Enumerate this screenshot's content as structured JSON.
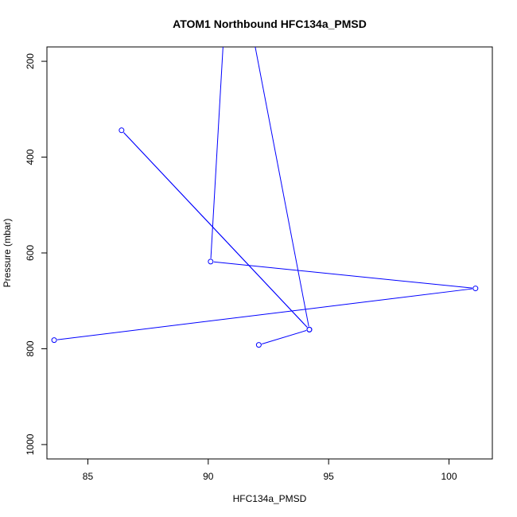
{
  "chart_data": {
    "type": "line",
    "title": "ATOM1 Northbound HFC134a_PMSD",
    "xlabel": "HFC134a_PMSD",
    "ylabel": "Pressure (mbar)",
    "xlim": [
      83.3,
      101.8
    ],
    "ylim": [
      1030,
      170
    ],
    "y_reversed": true,
    "x_ticks": [
      85,
      90,
      95,
      100
    ],
    "y_ticks": [
      200,
      400,
      600,
      800,
      1000
    ],
    "grid": false,
    "series": [
      {
        "color": "#0000ff",
        "marker": "open-circle",
        "x": [
          83.6,
          101.1,
          90.1,
          90.7,
          91.7,
          94.2,
          86.4,
          94.2,
          92.1
        ],
        "y": [
          782,
          674,
          618,
          94,
          104,
          760,
          344,
          760,
          792
        ],
        "marker_visible": [
          true,
          true,
          true,
          false,
          false,
          true,
          true,
          true,
          true
        ]
      }
    ]
  }
}
